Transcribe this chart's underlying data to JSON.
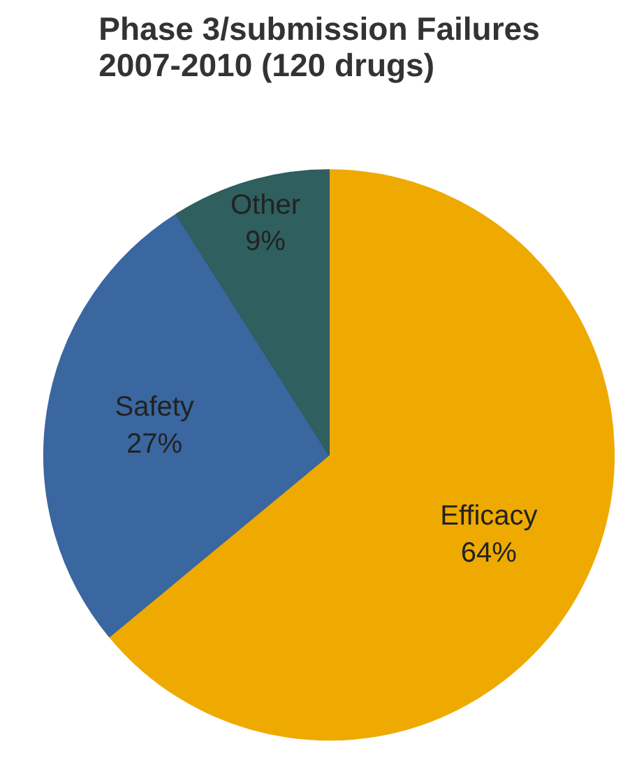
{
  "chart_data": {
    "type": "pie",
    "title": "Phase 3/submission Failures\n2007-2010 (120 drugs)",
    "categories": [
      "Efficacy",
      "Safety",
      "Other"
    ],
    "values": [
      64,
      27,
      9
    ],
    "value_labels": [
      "64%",
      "27%",
      "9%"
    ],
    "colors": [
      "#eeaa00",
      "#3a67a0",
      "#2f5f5f"
    ]
  }
}
